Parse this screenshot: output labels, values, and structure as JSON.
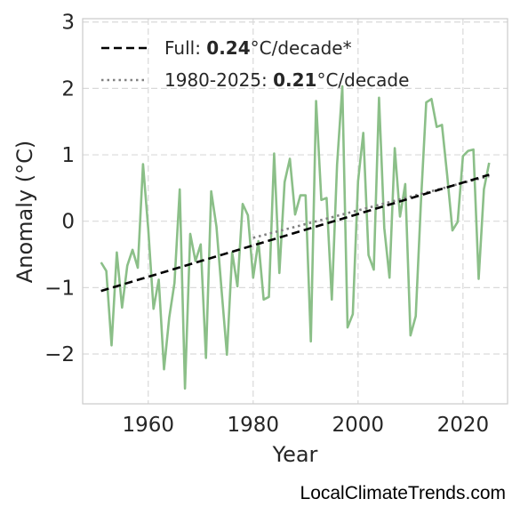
{
  "watermark": "LocalClimateTrends.com",
  "legend": {
    "full": {
      "prefix": "Full: ",
      "value": "0.24",
      "suffix": "°C/decade*"
    },
    "recent": {
      "prefix": "1980-2025: ",
      "value": "0.21",
      "suffix": "°C/decade"
    }
  },
  "colors": {
    "series": "#8bbf88",
    "full_trend": "#000000",
    "recent_trend": "#808080",
    "grid": "#d9d9d9",
    "frame": "#cccccc"
  },
  "chart_data": {
    "type": "line",
    "xlabel": "Year",
    "ylabel": "Anomaly (°C)",
    "xlim": [
      1947.5,
      2028.5
    ],
    "ylim": [
      -2.75,
      3.05
    ],
    "xticks": [
      1960,
      1980,
      2000,
      2020
    ],
    "xtick_labels": [
      "1960",
      "1980",
      "2000",
      "2020"
    ],
    "yticks": [
      -2,
      -1,
      0,
      1,
      2,
      3
    ],
    "ytick_labels": [
      "−2",
      "−1",
      "0",
      "1",
      "2",
      "3"
    ],
    "grid": true,
    "legend_position": "top-left",
    "series": [
      {
        "type": "line",
        "x": [
          1951,
          1952,
          1953,
          1954,
          1955,
          1956,
          1957,
          1958,
          1959,
          1960,
          1961,
          1962,
          1963,
          1964,
          1965,
          1966,
          1967,
          1968,
          1969,
          1970,
          1971,
          1972,
          1973,
          1974,
          1975,
          1976,
          1977,
          1978,
          1979,
          1980,
          1981,
          1982,
          1983,
          1984,
          1985,
          1986,
          1987,
          1988,
          1989,
          1990,
          1991,
          1992,
          1993,
          1994,
          1995,
          1996,
          1997,
          1998,
          1999,
          2000,
          2001,
          2002,
          2003,
          2004,
          2005,
          2006,
          2007,
          2008,
          2009,
          2010,
          2011,
          2012,
          2013,
          2014,
          2015,
          2016,
          2017,
          2018,
          2019,
          2020,
          2021,
          2022,
          2023,
          2024,
          2025
        ],
        "values": [
          -0.62,
          -0.75,
          -1.87,
          -0.47,
          -1.3,
          -0.67,
          -0.43,
          -0.7,
          0.86,
          -0.12,
          -1.32,
          -0.88,
          -2.23,
          -1.45,
          -0.93,
          0.48,
          -2.52,
          -0.19,
          -0.6,
          -0.35,
          -2.06,
          0.45,
          -0.08,
          -1.06,
          -2.01,
          -0.47,
          -0.98,
          0.26,
          0.09,
          -0.85,
          -0.3,
          -1.18,
          -1.14,
          1.02,
          -0.78,
          0.59,
          0.94,
          0.1,
          0.39,
          0.39,
          -1.81,
          1.81,
          0.32,
          0.35,
          -1.18,
          0.85,
          2.03,
          -1.6,
          -1.4,
          0.6,
          1.33,
          -0.51,
          -0.73,
          1.86,
          -0.1,
          -0.85,
          1.1,
          0.07,
          0.56,
          -1.72,
          -1.43,
          0.3,
          1.79,
          1.84,
          1.42,
          1.45,
          0.69,
          -0.14,
          -0.01,
          0.98,
          1.06,
          1.08,
          -0.87,
          0.48,
          0.88
        ]
      },
      {
        "type": "trend",
        "label": "full",
        "x": [
          1951,
          2025
        ],
        "values": [
          -1.05,
          0.7
        ]
      },
      {
        "type": "trend",
        "label": "recent",
        "x": [
          1980,
          2025
        ],
        "values": [
          -0.25,
          0.68
        ]
      }
    ]
  }
}
